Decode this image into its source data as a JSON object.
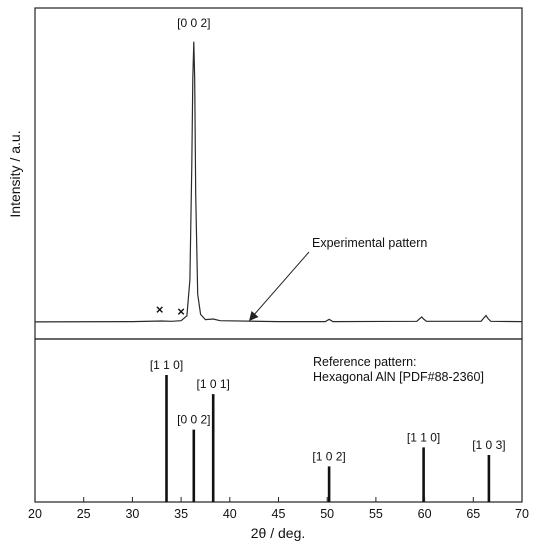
{
  "chart_data": {
    "type": "line",
    "xlabel": "2θ /  deg.",
    "ylabel": "Intensity / a.u.",
    "xlim": [
      20,
      70
    ],
    "xticks": [
      20,
      25,
      30,
      35,
      40,
      45,
      50,
      55,
      60,
      65,
      70
    ],
    "grid": false,
    "panels": [
      {
        "name": "experimental",
        "type": "line",
        "ylim": [
          0,
          100
        ],
        "annotation": "Experimental pattern",
        "peak_label": {
          "text": "[0 0 2]",
          "x": 36.3
        },
        "impurity_markers": [
          {
            "symbol": "×",
            "x": 32.8
          },
          {
            "symbol": "×",
            "x": 35.0
          }
        ],
        "series": [
          {
            "x": [
              20,
              30,
              33,
              34,
              35,
              35.6,
              35.9,
              36.1,
              36.2,
              36.3,
              36.4,
              36.5,
              36.7,
              37.0,
              37.5,
              38.3,
              39,
              45,
              49.8,
              50.2,
              50.6,
              59.2,
              59.5,
              59.7,
              59.9,
              60.2,
              65.8,
              66.1,
              66.3,
              66.5,
              66.8,
              70
            ],
            "y": [
              0.4,
              0.5,
              0.7,
              0.6,
              0.8,
              2.5,
              15,
              55,
              85,
              98,
              85,
              45,
              10,
              3,
              1.2,
              1.4,
              0.8,
              0.5,
              0.5,
              1.3,
              0.5,
              0.6,
              1.5,
              2.1,
              1.4,
              0.6,
              0.6,
              1.8,
              2.6,
              1.6,
              0.6,
              0.5
            ]
          }
        ]
      },
      {
        "name": "reference",
        "type": "bar",
        "title_lines": [
          "Reference pattern:",
          "Hexagonal AlN [PDF#88-2360]"
        ],
        "ylim": [
          0,
          100
        ],
        "peaks": [
          {
            "x": 33.5,
            "y": 100,
            "label": "[1 1 0]"
          },
          {
            "x": 36.3,
            "y": 57,
            "label": "[0 0 2]"
          },
          {
            "x": 38.3,
            "y": 85,
            "label": "[1 0 1]"
          },
          {
            "x": 50.2,
            "y": 28,
            "label": "[1 0 2]"
          },
          {
            "x": 59.9,
            "y": 43,
            "label": "[1 1 0]"
          },
          {
            "x": 66.6,
            "y": 37,
            "label": "[1 0 3]"
          }
        ]
      }
    ]
  }
}
